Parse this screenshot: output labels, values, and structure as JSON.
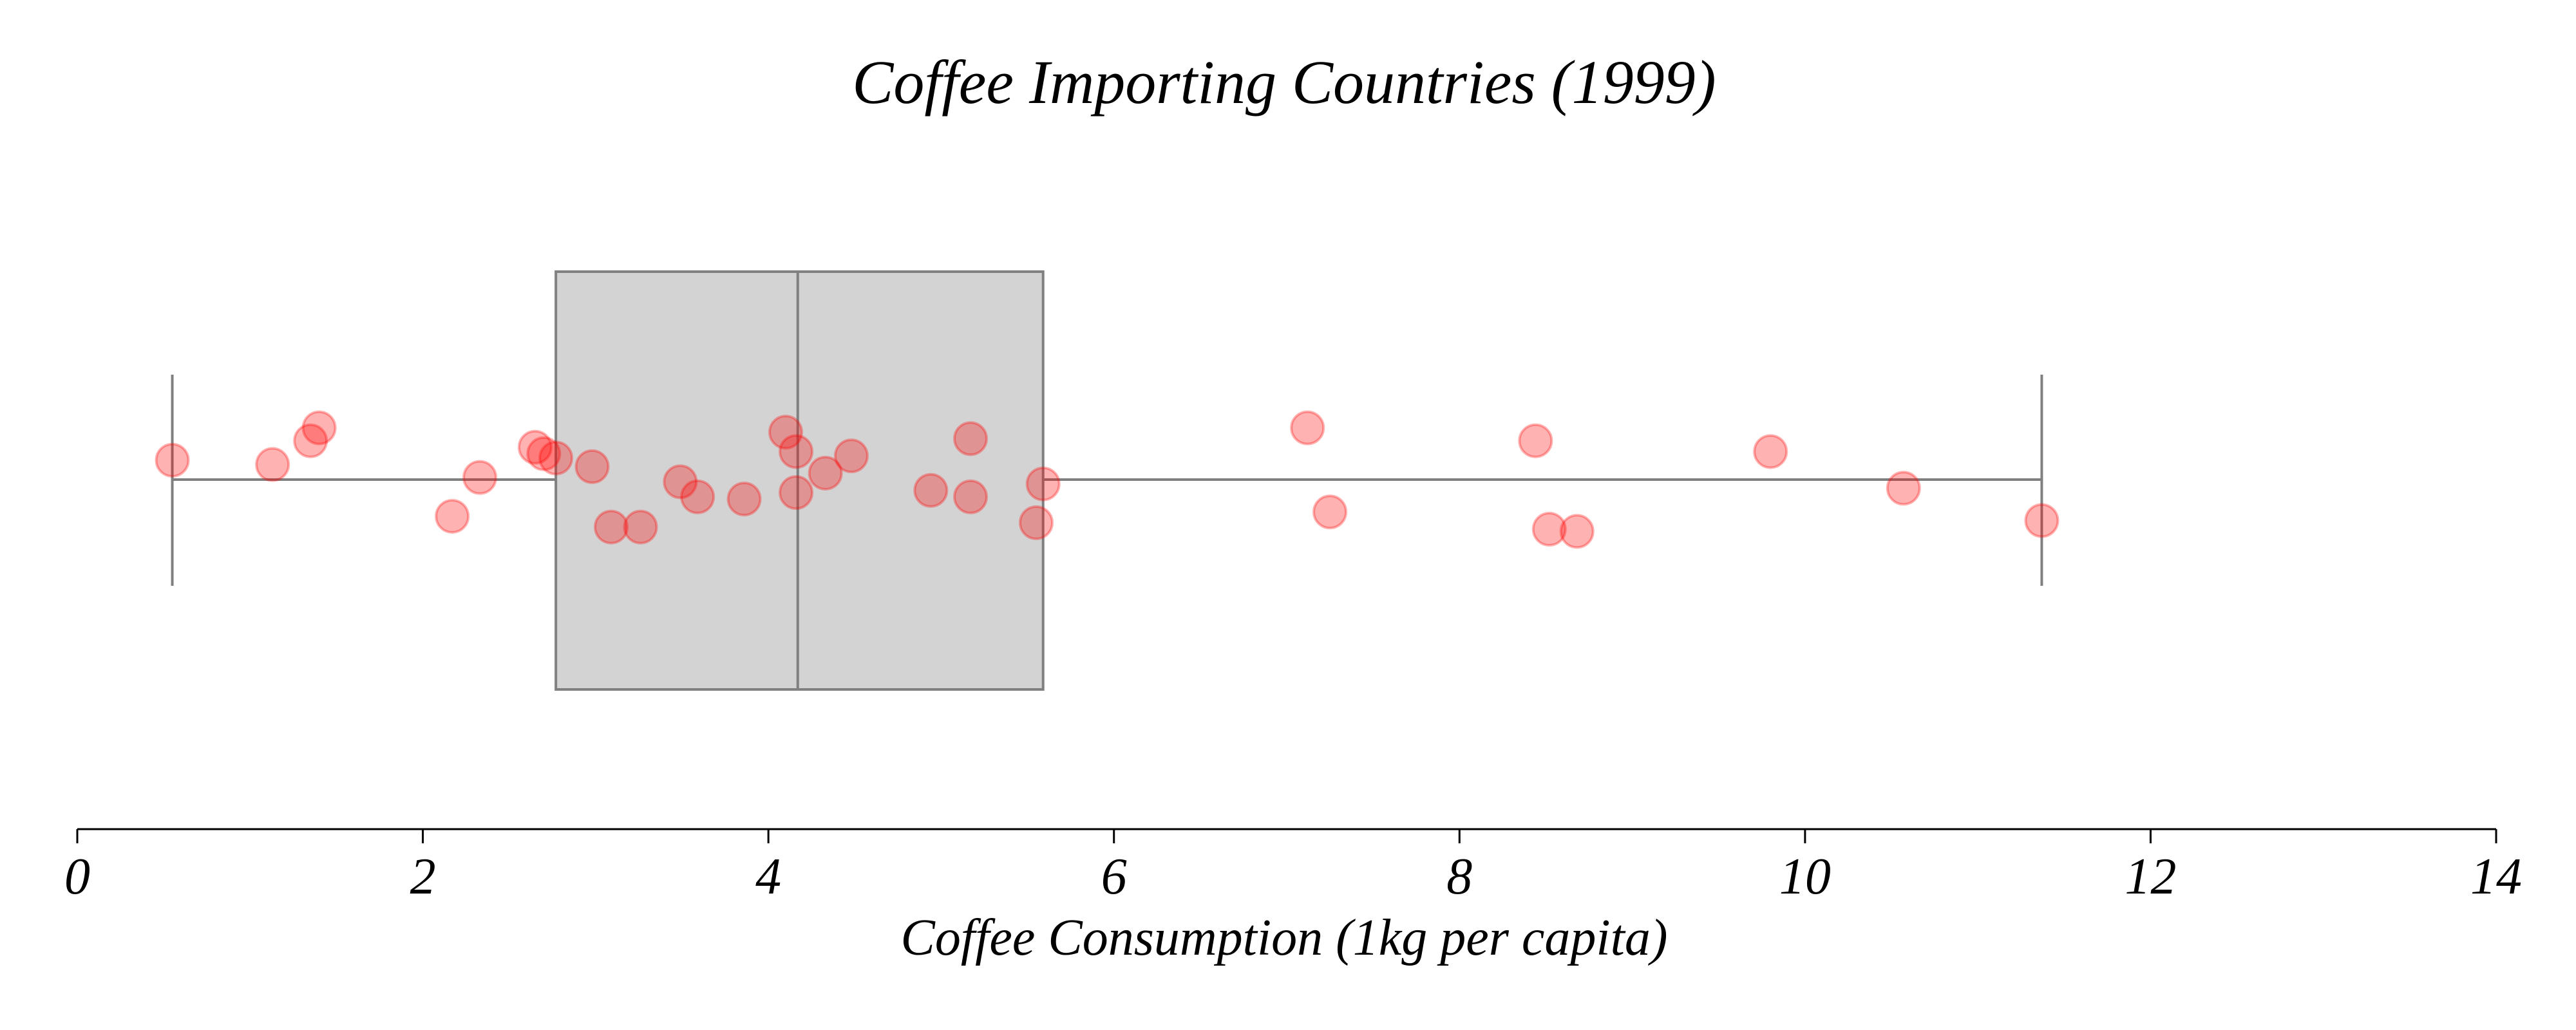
{
  "chart_data": {
    "type": "box",
    "title": "Coffee Importing Countries (1999)",
    "xlabel": "Coffee Consumption (1kg per capita)",
    "ylabel": "",
    "xlim": [
      0,
      14
    ],
    "ticks": [
      "0",
      "2",
      "4",
      "6",
      "8",
      "10",
      "12",
      "14"
    ],
    "grid": false,
    "box": {
      "whisker_low": 0.55,
      "q1": 2.77,
      "median": 4.17,
      "q3": 5.59,
      "whisker_high": 11.37
    },
    "points": [
      {
        "x": 0.55,
        "jitter": 0.09
      },
      {
        "x": 1.13,
        "jitter": 0.07
      },
      {
        "x": 1.35,
        "jitter": 0.18
      },
      {
        "x": 1.4,
        "jitter": 0.24
      },
      {
        "x": 2.17,
        "jitter": -0.17
      },
      {
        "x": 2.33,
        "jitter": 0.01
      },
      {
        "x": 2.65,
        "jitter": 0.15
      },
      {
        "x": 2.7,
        "jitter": 0.12
      },
      {
        "x": 2.77,
        "jitter": 0.1
      },
      {
        "x": 2.98,
        "jitter": 0.06
      },
      {
        "x": 3.09,
        "jitter": -0.22
      },
      {
        "x": 3.26,
        "jitter": -0.22
      },
      {
        "x": 3.49,
        "jitter": -0.01
      },
      {
        "x": 3.59,
        "jitter": -0.08
      },
      {
        "x": 3.86,
        "jitter": -0.09
      },
      {
        "x": 4.1,
        "jitter": 0.22
      },
      {
        "x": 4.16,
        "jitter": 0.13
      },
      {
        "x": 4.16,
        "jitter": -0.06
      },
      {
        "x": 4.33,
        "jitter": 0.03
      },
      {
        "x": 4.48,
        "jitter": 0.11
      },
      {
        "x": 4.94,
        "jitter": -0.05
      },
      {
        "x": 5.17,
        "jitter": 0.19
      },
      {
        "x": 5.17,
        "jitter": -0.08
      },
      {
        "x": 5.55,
        "jitter": -0.2
      },
      {
        "x": 5.59,
        "jitter": -0.02
      },
      {
        "x": 7.12,
        "jitter": 0.24
      },
      {
        "x": 7.25,
        "jitter": -0.15
      },
      {
        "x": 8.44,
        "jitter": 0.18
      },
      {
        "x": 8.52,
        "jitter": -0.23
      },
      {
        "x": 8.68,
        "jitter": -0.24
      },
      {
        "x": 9.8,
        "jitter": 0.13
      },
      {
        "x": 10.57,
        "jitter": -0.04
      },
      {
        "x": 11.37,
        "jitter": -0.19
      }
    ],
    "colors": {
      "box_fill": "#d3d3d3",
      "box_stroke": "#808080",
      "point_fill": "#ff0000",
      "point_stroke": "#ff0000",
      "axis": "#000000"
    }
  }
}
